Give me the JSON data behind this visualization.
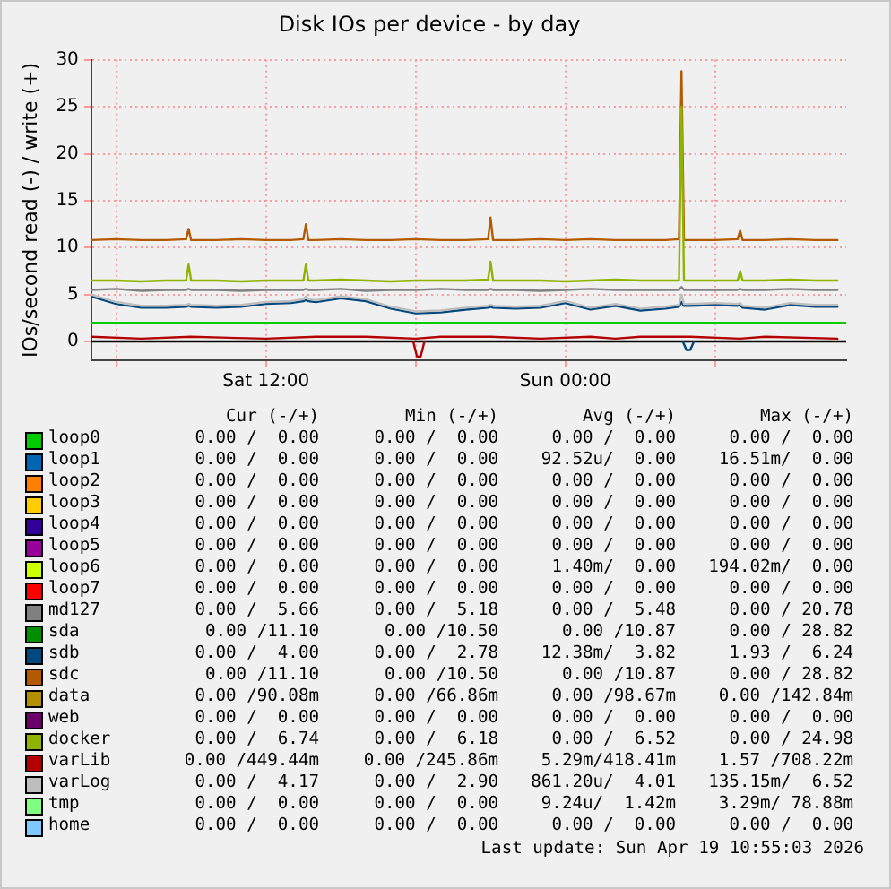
{
  "chart_data": {
    "type": "line",
    "title": "Disk IOs per device - by day",
    "ylabel": "IOs/second read (-) / write (+)",
    "x": [
      "2026-04-18T05:00",
      "2026-04-18T06:00",
      "2026-04-18T07:00",
      "2026-04-18T08:00",
      "2026-04-18T08:48",
      "2026-04-18T08:54",
      "2026-04-18T09:00",
      "2026-04-18T10:00",
      "2026-04-18T11:00",
      "2026-04-18T12:00",
      "2026-04-18T13:00",
      "2026-04-18T13:30",
      "2026-04-18T13:36",
      "2026-04-18T13:42",
      "2026-04-18T14:00",
      "2026-04-18T15:00",
      "2026-04-18T16:00",
      "2026-04-18T17:00",
      "2026-04-18T18:00",
      "2026-04-18T19:00",
      "2026-04-18T20:00",
      "2026-04-18T20:54",
      "2026-04-18T21:00",
      "2026-04-18T21:06",
      "2026-04-18T22:00",
      "2026-04-18T23:00",
      "2026-04-19T00:00",
      "2026-04-19T01:00",
      "2026-04-19T02:00",
      "2026-04-19T03:00",
      "2026-04-19T04:00",
      "2026-04-19T04:33",
      "2026-04-19T04:39",
      "2026-04-19T04:45",
      "2026-04-19T05:00",
      "2026-04-19T06:00",
      "2026-04-19T06:54",
      "2026-04-19T07:00",
      "2026-04-19T07:06",
      "2026-04-19T08:00",
      "2026-04-19T09:00",
      "2026-04-19T10:00",
      "2026-04-19T10:54"
    ],
    "xlim": [
      "2026-04-18T05:00",
      "2026-04-19T11:15"
    ],
    "xticks": [
      {
        "value": "2026-04-18T06:00",
        "label": null
      },
      {
        "value": "2026-04-18T12:00",
        "label": "Sat 12:00"
      },
      {
        "value": "2026-04-18T18:00",
        "label": null
      },
      {
        "value": "2026-04-19T00:00",
        "label": "Sun 00:00"
      },
      {
        "value": "2026-04-19T06:00",
        "label": null
      }
    ],
    "ylim": [
      -2,
      30
    ],
    "yticks": [
      0,
      5,
      10,
      15,
      20,
      25,
      30
    ],
    "grid": true,
    "legend": "bottom",
    "ref_lines": [
      {
        "axis": "y",
        "value": 2,
        "color": "#00cc00"
      },
      {
        "axis": "y",
        "value": 0,
        "color": "#000000"
      }
    ],
    "series": [
      {
        "name": "loop0",
        "color": "#00cc00",
        "values": [
          null,
          null,
          null,
          null,
          null,
          null,
          null,
          null,
          null,
          null,
          null,
          null,
          null,
          null,
          null,
          null,
          null,
          null,
          null,
          null,
          null,
          null,
          null,
          null,
          null,
          null,
          null,
          null,
          null,
          null,
          null,
          null,
          null,
          null,
          null,
          null,
          null,
          null,
          null,
          null,
          null,
          null,
          null
        ]
      },
      {
        "name": "loop1",
        "color": "#0066b3",
        "values": [
          null,
          null,
          null,
          null,
          null,
          null,
          null,
          null,
          null,
          null,
          null,
          null,
          null,
          null,
          null,
          null,
          null,
          null,
          null,
          null,
          null,
          null,
          null,
          null,
          null,
          null,
          null,
          null,
          null,
          null,
          null,
          null,
          null,
          null,
          null,
          null,
          null,
          null,
          null,
          null,
          null,
          null,
          null
        ]
      },
      {
        "name": "loop2",
        "color": "#ff8000",
        "values": [
          null,
          null,
          null,
          null,
          null,
          null,
          null,
          null,
          null,
          null,
          null,
          null,
          null,
          null,
          null,
          null,
          null,
          null,
          null,
          null,
          null,
          null,
          null,
          null,
          null,
          null,
          null,
          null,
          null,
          null,
          null,
          null,
          null,
          null,
          null,
          null,
          null,
          null,
          null,
          null,
          null,
          null,
          null
        ]
      },
      {
        "name": "loop3",
        "color": "#ffcc00",
        "values": [
          null,
          null,
          null,
          null,
          null,
          null,
          null,
          null,
          null,
          null,
          null,
          null,
          null,
          null,
          null,
          null,
          null,
          null,
          null,
          null,
          null,
          null,
          null,
          null,
          null,
          null,
          null,
          null,
          null,
          null,
          null,
          null,
          null,
          null,
          null,
          null,
          null,
          null,
          null,
          null,
          null,
          null,
          null
        ]
      },
      {
        "name": "loop4",
        "color": "#330099",
        "values": [
          null,
          null,
          null,
          null,
          null,
          null,
          null,
          null,
          null,
          null,
          null,
          null,
          null,
          null,
          null,
          null,
          null,
          null,
          null,
          null,
          null,
          null,
          null,
          null,
          null,
          null,
          null,
          null,
          null,
          null,
          null,
          null,
          null,
          null,
          null,
          null,
          null,
          null,
          null,
          null,
          null,
          null,
          null
        ]
      },
      {
        "name": "loop5",
        "color": "#990099",
        "values": [
          null,
          null,
          null,
          null,
          null,
          null,
          null,
          null,
          null,
          null,
          null,
          null,
          null,
          null,
          null,
          null,
          null,
          null,
          null,
          null,
          null,
          null,
          null,
          null,
          null,
          null,
          null,
          null,
          null,
          null,
          null,
          null,
          null,
          null,
          null,
          null,
          null,
          null,
          null,
          null,
          null,
          null,
          null
        ]
      },
      {
        "name": "loop6",
        "color": "#ccff00",
        "values": [
          null,
          null,
          null,
          null,
          null,
          null,
          null,
          null,
          null,
          null,
          null,
          null,
          null,
          null,
          null,
          null,
          null,
          null,
          null,
          null,
          null,
          null,
          null,
          null,
          null,
          null,
          null,
          null,
          null,
          null,
          null,
          null,
          null,
          null,
          null,
          null,
          null,
          null,
          null,
          null,
          null,
          null,
          null
        ]
      },
      {
        "name": "loop7",
        "color": "#ff0000",
        "values": [
          null,
          null,
          null,
          null,
          null,
          null,
          null,
          null,
          null,
          null,
          null,
          null,
          null,
          null,
          null,
          null,
          null,
          null,
          null,
          null,
          null,
          null,
          null,
          null,
          null,
          null,
          null,
          null,
          null,
          null,
          null,
          null,
          null,
          null,
          null,
          null,
          null,
          null,
          null,
          null,
          null,
          null,
          null
        ]
      },
      {
        "name": "md127",
        "color": "#808080",
        "values": [
          5.5,
          5.6,
          5.4,
          5.5,
          5.5,
          5.6,
          5.5,
          5.5,
          5.4,
          5.5,
          5.5,
          5.5,
          5.6,
          5.5,
          5.5,
          5.6,
          5.4,
          5.5,
          5.5,
          5.6,
          5.5,
          5.5,
          5.6,
          5.5,
          5.5,
          5.4,
          5.5,
          5.6,
          5.5,
          5.5,
          5.5,
          5.5,
          5.8,
          5.5,
          5.5,
          5.5,
          5.5,
          5.6,
          5.5,
          5.5,
          5.6,
          5.5,
          5.5
        ]
      },
      {
        "name": "sda",
        "color": "#008f00",
        "values": [
          null,
          null,
          null,
          null,
          null,
          null,
          null,
          null,
          null,
          null,
          null,
          null,
          null,
          null,
          null,
          null,
          null,
          null,
          null,
          null,
          null,
          null,
          null,
          null,
          null,
          null,
          null,
          null,
          null,
          null,
          null,
          null,
          null,
          null,
          null,
          null,
          null,
          null,
          null,
          null,
          null,
          null,
          null
        ]
      },
      {
        "name": "sdb",
        "color": "#00487d",
        "values": [
          4.8,
          4.0,
          3.6,
          3.6,
          3.7,
          3.8,
          3.7,
          3.6,
          3.7,
          4.0,
          4.1,
          4.3,
          4.4,
          4.3,
          4.2,
          4.6,
          4.3,
          3.5,
          3.0,
          3.1,
          3.4,
          3.6,
          3.7,
          3.6,
          3.5,
          3.6,
          4.1,
          3.4,
          3.8,
          3.3,
          3.5,
          3.7,
          4.2,
          3.8,
          3.8,
          3.9,
          3.8,
          3.9,
          3.6,
          3.4,
          3.9,
          3.7,
          3.7
        ]
      },
      {
        "name": "sdc",
        "color": "#b35a00",
        "values": [
          10.8,
          10.9,
          10.8,
          10.8,
          10.9,
          12.0,
          10.8,
          10.8,
          10.9,
          10.8,
          10.8,
          10.9,
          12.5,
          10.8,
          10.8,
          10.9,
          10.8,
          10.8,
          10.9,
          10.8,
          10.8,
          10.9,
          13.2,
          10.8,
          10.8,
          10.9,
          10.8,
          10.9,
          10.8,
          10.8,
          10.8,
          10.9,
          28.8,
          10.8,
          10.8,
          10.8,
          10.9,
          11.8,
          10.8,
          10.8,
          10.9,
          10.8,
          10.8
        ]
      },
      {
        "name": "data",
        "color": "#b38f00",
        "values": [
          null,
          null,
          null,
          null,
          null,
          null,
          null,
          null,
          null,
          null,
          null,
          null,
          null,
          null,
          null,
          null,
          null,
          null,
          null,
          null,
          null,
          null,
          null,
          null,
          null,
          null,
          null,
          null,
          null,
          null,
          null,
          null,
          null,
          null,
          null,
          null,
          null,
          null,
          null,
          null,
          null,
          null,
          null
        ]
      },
      {
        "name": "web",
        "color": "#6b006b",
        "values": [
          null,
          null,
          null,
          null,
          null,
          null,
          null,
          null,
          null,
          null,
          null,
          null,
          null,
          null,
          null,
          null,
          null,
          null,
          null,
          null,
          null,
          null,
          null,
          null,
          null,
          null,
          null,
          null,
          null,
          null,
          null,
          null,
          null,
          null,
          null,
          null,
          null,
          null,
          null,
          null,
          null,
          null,
          null
        ]
      },
      {
        "name": "docker",
        "color": "#8fb300",
        "values": [
          6.5,
          6.5,
          6.4,
          6.5,
          6.5,
          8.2,
          6.5,
          6.5,
          6.4,
          6.5,
          6.5,
          6.5,
          8.2,
          6.5,
          6.5,
          6.6,
          6.5,
          6.4,
          6.5,
          6.5,
          6.5,
          6.6,
          8.5,
          6.5,
          6.5,
          6.5,
          6.4,
          6.5,
          6.6,
          6.5,
          6.5,
          6.5,
          25.0,
          6.5,
          6.5,
          6.5,
          6.5,
          7.5,
          6.5,
          6.5,
          6.6,
          6.5,
          6.5
        ]
      },
      {
        "name": "varLib",
        "color": "#b30000",
        "x": [
          "2026-04-18T05:00",
          "2026-04-18T07:00",
          "2026-04-18T09:00",
          "2026-04-18T12:00",
          "2026-04-18T14:00",
          "2026-04-18T16:00",
          "2026-04-18T18:00",
          "2026-04-18T19:00",
          "2026-04-18T21:00",
          "2026-04-18T23:00",
          "2026-04-19T01:00",
          "2026-04-19T02:00",
          "2026-04-19T03:00",
          "2026-04-19T05:00",
          "2026-04-19T07:00",
          "2026-04-19T08:00",
          "2026-04-19T10:54"
        ],
        "values": [
          0.5,
          0.3,
          0.5,
          0.3,
          0.5,
          0.5,
          0.3,
          0.5,
          0.5,
          0.3,
          0.5,
          0.3,
          0.5,
          0.5,
          0.3,
          0.5,
          0.3
        ]
      },
      {
        "name": "varLog",
        "color": "#bebebe",
        "values": [
          5.0,
          4.2,
          3.8,
          3.8,
          3.9,
          4.0,
          3.9,
          3.8,
          3.9,
          4.2,
          4.3,
          4.5,
          4.8,
          4.5,
          4.4,
          4.8,
          4.5,
          3.7,
          3.2,
          3.3,
          3.6,
          3.8,
          3.9,
          3.8,
          3.7,
          3.8,
          4.3,
          3.6,
          4.0,
          3.5,
          3.7,
          3.9,
          5.0,
          4.0,
          4.0,
          4.1,
          4.0,
          4.1,
          3.8,
          3.6,
          4.1,
          3.9,
          3.9
        ]
      },
      {
        "name": "tmp",
        "color": "#80ff80",
        "values": [
          null,
          null,
          null,
          null,
          null,
          null,
          null,
          null,
          null,
          null,
          null,
          null,
          null,
          null,
          null,
          null,
          null,
          null,
          null,
          null,
          null,
          null,
          null,
          null,
          null,
          null,
          null,
          null,
          null,
          null,
          null,
          null,
          null,
          null,
          null,
          null,
          null,
          null,
          null,
          null,
          null,
          null,
          null
        ]
      },
      {
        "name": "home",
        "color": "#80c9ff",
        "values": [
          null,
          null,
          null,
          null,
          null,
          null,
          null,
          null,
          null,
          null,
          null,
          null,
          null,
          null,
          null,
          null,
          null,
          null,
          null,
          null,
          null,
          null,
          null,
          null,
          null,
          null,
          null,
          null,
          null,
          null,
          null,
          null,
          null,
          null,
          null,
          null,
          null,
          null,
          null,
          null,
          null,
          null,
          null
        ]
      },
      {
        "color": "#b30000",
        "x": [
          "2026-04-18T17:54",
          "2026-04-18T18:03",
          "2026-04-18T18:12",
          "2026-04-18T18:21"
        ],
        "values": [
          0,
          -1.6,
          -1.6,
          0
        ]
      },
      {
        "color": "#00487d",
        "x": [
          "2026-04-19T04:42",
          "2026-04-19T04:51",
          "2026-04-19T05:00",
          "2026-04-19T05:09"
        ],
        "values": [
          0,
          -0.9,
          -0.9,
          0
        ]
      }
    ],
    "annotations": [
      "Cur (-/+)   Min (-/+)   Avg (-/+)   Max (-/+)",
      "0.00 /  0.00   0.00 /  0.00   0.00 /  0.00   0.00 /  0.00",
      "0.00 /  0.00   0.00 /  0.00   92.52u/  0.00   16.51m/  0.00",
      "0.00 /  0.00   0.00 /  0.00   0.00 /  0.00   0.00 /  0.00",
      "0.00 /  0.00   0.00 /  0.00   0.00 /  0.00   0.00 /  0.00",
      "0.00 /  0.00   0.00 /  0.00   0.00 /  0.00   0.00 /  0.00",
      "0.00 /  0.00   0.00 /  0.00   0.00 /  0.00   0.00 /  0.00",
      "0.00 /  0.00   0.00 /  0.00   1.40m/  0.00   194.02m/  0.00",
      "0.00 /  0.00   0.00 /  0.00   0.00 /  0.00   0.00 /  0.00",
      "0.00 /  5.66   0.00 /  5.18   0.00 /  5.48   0.00 / 20.78",
      "0.00 /11.10   0.00 /10.50   0.00 /10.87   0.00 / 28.82",
      "0.00 /  4.00   0.00 /  2.78   12.38m/  3.82   1.93 /  6.24",
      "0.00 /11.10   0.00 /10.50   0.00 /10.87   0.00 / 28.82",
      "0.00 /90.08m   0.00 /66.86m   0.00 /98.67m   0.00 /142.84m",
      "0.00 /  0.00   0.00 /  0.00   0.00 /  0.00   0.00 /  0.00",
      "0.00 /  6.74   0.00 /  6.18   0.00 /  6.52   0.00 / 24.98",
      "0.00 /449.44m   0.00 /245.86m   5.29m/418.41m   1.57 /708.22m",
      "0.00 /  4.17   0.00 /  2.90   861.20u/  4.01   135.15m/  6.52",
      "0.00 /  0.00   0.00 /  0.00   9.24u/  1.42m   3.29m/ 78.88m",
      "0.00 /  0.00   0.00 /  0.00   0.00 /  0.00   0.00 /  0.00",
      "Last update: Sun Apr 19 10:55:03 2026"
    ]
  }
}
